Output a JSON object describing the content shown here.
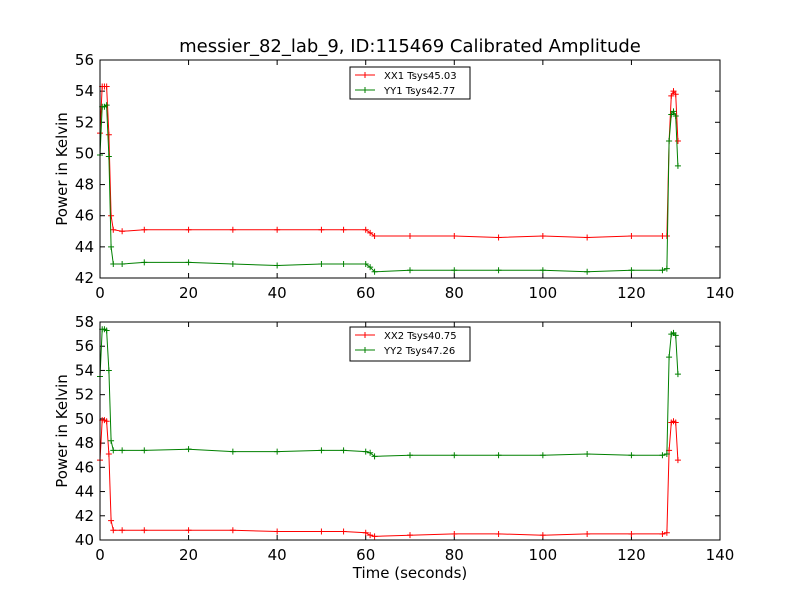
{
  "title": "messier_82_lab_9, ID:115469 Calibrated Amplitude",
  "chart_data": [
    {
      "type": "line",
      "ylabel": "Power in Kelvin",
      "xlabel": "",
      "xlim": [
        0,
        140
      ],
      "ylim": [
        42,
        56
      ],
      "x_ticks": [
        "0",
        "20",
        "40",
        "60",
        "80",
        "100",
        "120",
        "140"
      ],
      "y_ticks": [
        "42",
        "44",
        "46",
        "48",
        "50",
        "52",
        "54",
        "56"
      ],
      "legend_position": "top-center",
      "series": [
        {
          "name": "XX1 Tsys45.03",
          "color": "#ff0000",
          "x": [
            0,
            0.5,
            1,
            1.5,
            2,
            2.5,
            3,
            5,
            10,
            20,
            30,
            40,
            50,
            55,
            60,
            61,
            62,
            70,
            80,
            90,
            100,
            110,
            120,
            127,
            128,
            128.5,
            129,
            129.5,
            130,
            130.5
          ],
          "y": [
            51.3,
            54.3,
            54.3,
            54.3,
            51.2,
            46.0,
            45.1,
            45.0,
            45.1,
            45.1,
            45.1,
            45.1,
            45.1,
            45.1,
            45.1,
            44.9,
            44.7,
            44.7,
            44.7,
            44.6,
            44.7,
            44.6,
            44.7,
            44.7,
            44.7,
            50.8,
            53.7,
            54.0,
            53.8,
            50.8
          ]
        },
        {
          "name": "YY1 Tsys42.77",
          "color": "#008000",
          "x": [
            0,
            0.5,
            1,
            1.5,
            2,
            2.5,
            3,
            5,
            10,
            20,
            30,
            40,
            50,
            55,
            60,
            61,
            62,
            70,
            80,
            90,
            100,
            110,
            120,
            127,
            128,
            128.5,
            129,
            129.5,
            130,
            130.5
          ],
          "y": [
            49.9,
            53.0,
            53.0,
            53.1,
            49.8,
            44.0,
            42.9,
            42.9,
            43.0,
            43.0,
            42.9,
            42.8,
            42.9,
            42.9,
            42.9,
            42.7,
            42.4,
            42.5,
            42.5,
            42.5,
            42.5,
            42.4,
            42.5,
            42.5,
            42.6,
            50.8,
            52.5,
            52.7,
            52.4,
            49.2
          ]
        }
      ]
    },
    {
      "type": "line",
      "ylabel": "Power in Kelvin",
      "xlabel": "Time (seconds)",
      "xlim": [
        0,
        140
      ],
      "ylim": [
        40,
        58
      ],
      "x_ticks": [
        "0",
        "20",
        "40",
        "60",
        "80",
        "100",
        "120",
        "140"
      ],
      "y_ticks": [
        "40",
        "42",
        "44",
        "46",
        "48",
        "50",
        "52",
        "54",
        "56",
        "58"
      ],
      "legend_position": "top-center",
      "series": [
        {
          "name": "XX2 Tsys40.75",
          "color": "#ff0000",
          "x": [
            0,
            0.5,
            1,
            1.5,
            2,
            2.5,
            3,
            5,
            10,
            20,
            30,
            40,
            50,
            55,
            60,
            61,
            62,
            70,
            80,
            90,
            100,
            110,
            120,
            127,
            128,
            128.5,
            129,
            129.5,
            130,
            130.5
          ],
          "y": [
            46.6,
            49.9,
            49.9,
            49.8,
            47.1,
            41.6,
            40.8,
            40.8,
            40.8,
            40.8,
            40.8,
            40.7,
            40.7,
            40.7,
            40.6,
            40.4,
            40.3,
            40.4,
            40.5,
            40.5,
            40.4,
            40.5,
            40.5,
            40.5,
            40.6,
            47.4,
            49.7,
            49.8,
            49.7,
            46.6
          ]
        },
        {
          "name": "YY2 Tsys47.26",
          "color": "#008000",
          "x": [
            0,
            0.5,
            1,
            1.5,
            2,
            2.5,
            3,
            5,
            10,
            20,
            30,
            40,
            50,
            55,
            60,
            61,
            62,
            70,
            80,
            90,
            100,
            110,
            120,
            127,
            128,
            128.5,
            129,
            129.5,
            130,
            130.5
          ],
          "y": [
            53.5,
            57.4,
            57.4,
            57.3,
            54.0,
            48.2,
            47.4,
            47.4,
            47.4,
            47.5,
            47.3,
            47.3,
            47.4,
            47.4,
            47.3,
            47.2,
            46.9,
            47.0,
            47.0,
            47.0,
            47.0,
            47.1,
            47.0,
            47.0,
            47.1,
            55.1,
            57.0,
            57.1,
            56.9,
            53.7
          ]
        }
      ]
    }
  ]
}
